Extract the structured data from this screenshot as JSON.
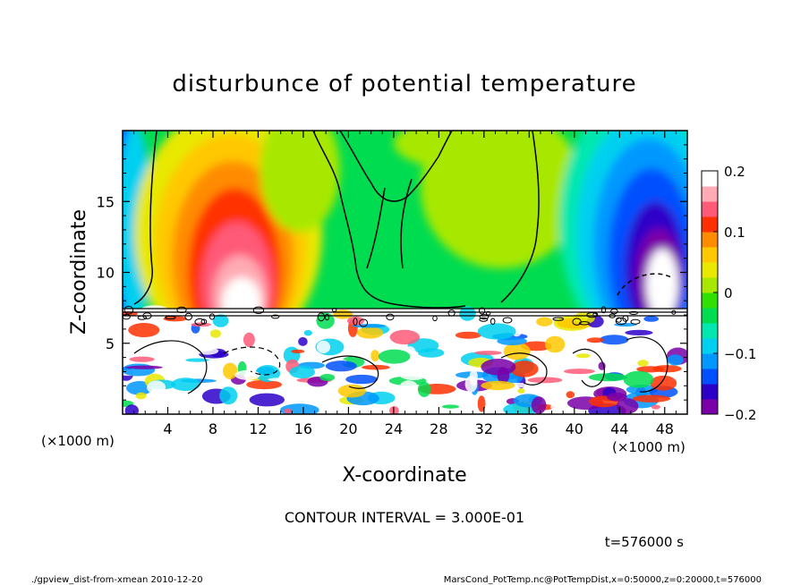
{
  "chart_data": {
    "type": "heatmap",
    "title": "disturbunce of potential temperature",
    "xlabel": "X-coordinate",
    "ylabel": "Z-coordinate",
    "x_unit_left": "(×1000 m)",
    "x_unit_right": "(×1000 m)",
    "y_unit": "(×1000 m)",
    "xlim": [
      0,
      50
    ],
    "ylim": [
      0,
      20
    ],
    "x_ticks": [
      4,
      8,
      12,
      16,
      20,
      24,
      28,
      32,
      36,
      40,
      44,
      48
    ],
    "y_ticks": [
      5,
      10,
      15
    ],
    "colorbar": {
      "min": -0.2,
      "max": 0.2,
      "ticks": [
        {
          "value": 0.2,
          "label": "0.2"
        },
        {
          "value": 0.1,
          "label": "0.1"
        },
        {
          "value": 0,
          "label": "0"
        },
        {
          "value": -0.1,
          "label": "−0.1"
        },
        {
          "value": -0.2,
          "label": "−0.2"
        }
      ],
      "colors": [
        "#7a00a8",
        "#2d00c8",
        "#0050ff",
        "#0098ff",
        "#00d0f0",
        "#00e8b0",
        "#00dc50",
        "#30e000",
        "#a8e800",
        "#e8e800",
        "#ffc800",
        "#ff8c00",
        "#ff3000",
        "#ff5a78",
        "#ffaab4",
        "#ffffff"
      ]
    },
    "annotations": {
      "contour_interval": "CONTOUR INTERVAL = 3.000E-01",
      "time": "t=576000 s"
    }
  },
  "footer": {
    "left": "./gpview_dist-from-xmean  2010-12-20",
    "right": "MarsCond_PotTemp.nc@PotTempDist,x=0:50000,z=0:20000,t=576000"
  }
}
